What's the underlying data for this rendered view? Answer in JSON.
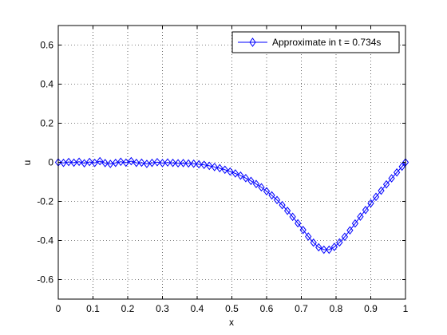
{
  "chart_data": {
    "type": "line",
    "title": "",
    "xlabel": "x",
    "ylabel": "u",
    "xlim": [
      0,
      1
    ],
    "ylim": [
      -0.7,
      0.7
    ],
    "xticks": [
      0,
      0.1,
      0.2,
      0.3,
      0.4,
      0.5,
      0.6,
      0.7,
      0.8,
      0.9,
      1
    ],
    "xtick_labels": [
      "0",
      "0.1",
      "0.2",
      "0.3",
      "0.4",
      "0.5",
      "0.6",
      "0.7",
      "0.8",
      "0.9",
      "1"
    ],
    "yticks": [
      -0.6,
      -0.4,
      -0.2,
      0,
      0.2,
      0.4,
      0.6
    ],
    "ytick_labels": [
      "-0.6",
      "-0.4",
      "-0.2",
      "0",
      "0.2",
      "0.4",
      "0.6"
    ],
    "grid": true,
    "legend_position": "top-right",
    "series": [
      {
        "name": "Approximate in t = 0.734s",
        "color": "#0000ff",
        "marker": "diamond",
        "x": [
          0.0,
          0.015,
          0.03,
          0.045,
          0.06,
          0.075,
          0.09,
          0.105,
          0.12,
          0.135,
          0.15,
          0.165,
          0.18,
          0.195,
          0.21,
          0.225,
          0.24,
          0.255,
          0.27,
          0.285,
          0.3,
          0.315,
          0.33,
          0.345,
          0.36,
          0.375,
          0.39,
          0.405,
          0.42,
          0.435,
          0.45,
          0.465,
          0.48,
          0.495,
          0.51,
          0.525,
          0.54,
          0.555,
          0.57,
          0.585,
          0.6,
          0.615,
          0.63,
          0.645,
          0.66,
          0.675,
          0.69,
          0.705,
          0.72,
          0.735,
          0.75,
          0.765,
          0.78,
          0.795,
          0.81,
          0.825,
          0.84,
          0.855,
          0.87,
          0.885,
          0.9,
          0.915,
          0.93,
          0.945,
          0.96,
          0.975,
          0.99,
          1.0
        ],
        "y": [
          0.0,
          -0.003,
          0.002,
          -0.002,
          0.003,
          -0.005,
          0.002,
          -0.003,
          0.006,
          -0.004,
          -0.008,
          -0.003,
          0.003,
          -0.002,
          0.006,
          -0.003,
          -0.002,
          -0.008,
          -0.003,
          0.001,
          -0.004,
          -0.001,
          -0.003,
          -0.005,
          -0.004,
          -0.006,
          -0.007,
          -0.01,
          -0.013,
          -0.018,
          -0.024,
          -0.03,
          -0.038,
          -0.047,
          -0.057,
          -0.068,
          -0.081,
          -0.095,
          -0.111,
          -0.128,
          -0.148,
          -0.169,
          -0.193,
          -0.219,
          -0.248,
          -0.279,
          -0.312,
          -0.346,
          -0.38,
          -0.411,
          -0.435,
          -0.447,
          -0.447,
          -0.433,
          -0.41,
          -0.381,
          -0.348,
          -0.313,
          -0.278,
          -0.244,
          -0.21,
          -0.177,
          -0.145,
          -0.113,
          -0.082,
          -0.052,
          -0.022,
          0.0
        ]
      }
    ]
  }
}
